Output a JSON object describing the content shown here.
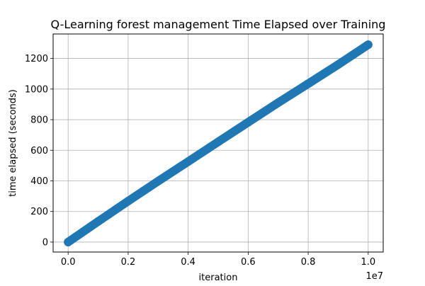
{
  "chart_data": {
    "type": "scatter",
    "title": "Q-Learning forest management Time Elapsed over Training",
    "xlabel": "iteration",
    "ylabel": "time elapsed (seconds)",
    "x_offset_label": "1e7",
    "xlim": [
      -0.05,
      1.05
    ],
    "ylim": [
      -65,
      1360
    ],
    "x_ticks": [
      0.0,
      0.2,
      0.4,
      0.6,
      0.8,
      1.0
    ],
    "x_tick_labels": [
      "0.0",
      "0.2",
      "0.4",
      "0.6",
      "0.8",
      "1.0"
    ],
    "y_ticks": [
      0,
      200,
      400,
      600,
      800,
      1000,
      1200
    ],
    "y_tick_labels": [
      "0",
      "200",
      "400",
      "600",
      "800",
      "1000",
      "1200"
    ],
    "grid": true,
    "series": [
      {
        "color": "#1f77b4",
        "x": [
          0.0,
          0.1,
          0.2,
          0.3,
          0.4,
          0.5,
          0.6,
          0.7,
          0.8,
          0.9,
          1.0
        ],
        "y": [
          0,
          135,
          268,
          398,
          526,
          655,
          783,
          911,
          1035,
          1160,
          1290
        ]
      }
    ]
  }
}
